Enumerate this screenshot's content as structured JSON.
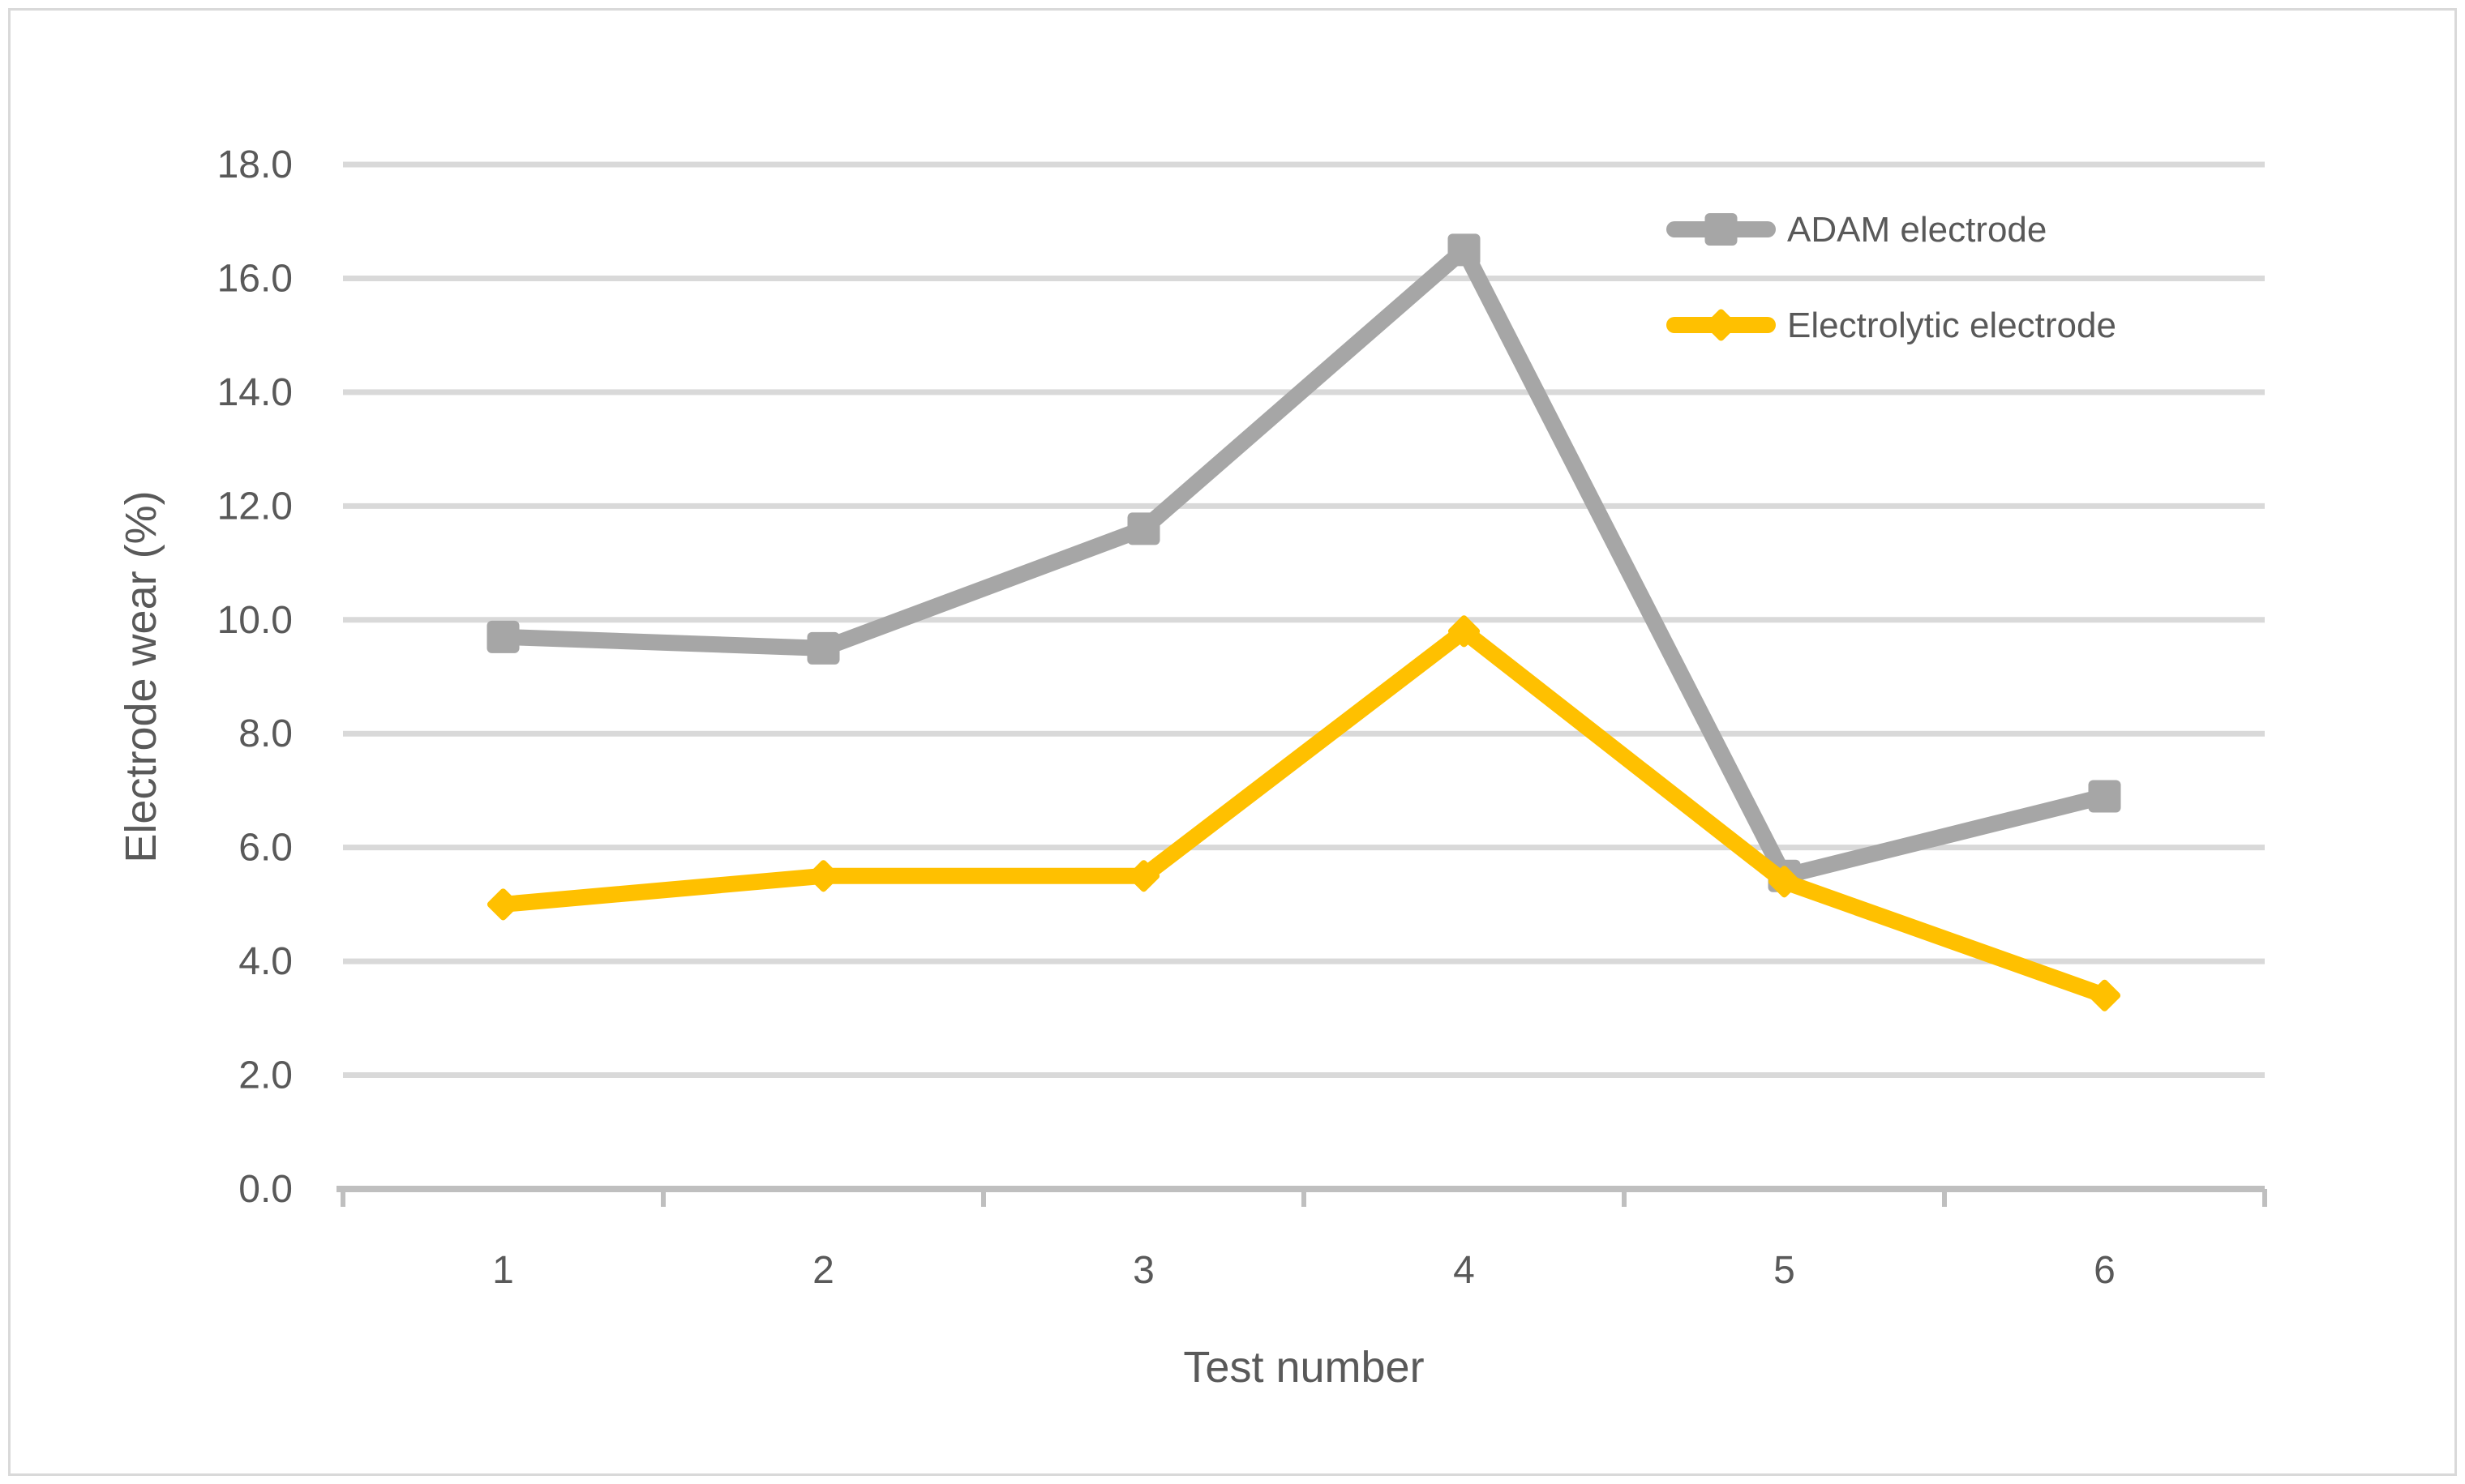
{
  "figure": {
    "background": "#ffffff",
    "border_color": "#d9d9d9"
  },
  "chart_data": {
    "type": "line",
    "title": "",
    "xlabel": "Test number",
    "ylabel": "Electrode wear (%)",
    "categories": [
      "1",
      "2",
      "3",
      "4",
      "5",
      "6"
    ],
    "series": [
      {
        "name": "ADAM electrode",
        "color": "#a6a6a6",
        "marker": "square",
        "values": [
          9.7,
          9.5,
          11.6,
          16.5,
          5.5,
          6.9
        ]
      },
      {
        "name": "Electrolytic electrode",
        "color": "#ffc000",
        "marker": "diamond",
        "values": [
          5.0,
          5.5,
          5.5,
          9.8,
          5.4,
          3.4
        ]
      }
    ],
    "ylim": [
      0,
      18
    ],
    "ytick_step": 2,
    "ytick_labels": [
      "0.0",
      "2.0",
      "4.0",
      "6.0",
      "8.0",
      "10.0",
      "12.0",
      "14.0",
      "16.0",
      "18.0"
    ],
    "grid": true,
    "gridline_color": "#d9d9d9",
    "axis_line_color": "#bfbfbf",
    "tick_label_color": "#595959",
    "legend_position": "top-right"
  }
}
